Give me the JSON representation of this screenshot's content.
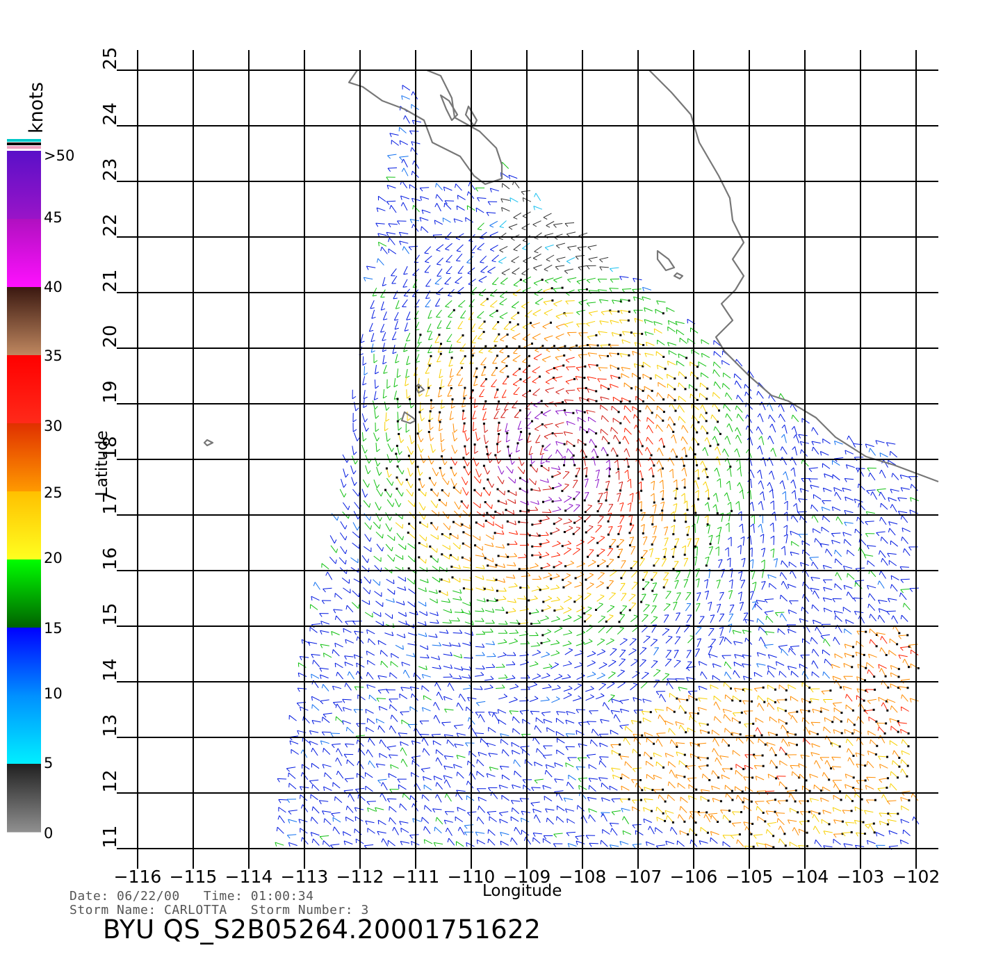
{
  "map": {
    "lon_range": [
      -116,
      -101.6
    ],
    "lat_range": [
      11,
      25
    ],
    "x_axis_title": "Longitude",
    "y_axis_title": "Latitude",
    "lon_ticks": [
      "−116",
      "−115",
      "−114",
      "−113",
      "−112",
      "−111",
      "−110",
      "−109",
      "−108",
      "−107",
      "−106",
      "−105",
      "−104",
      "−103",
      "−102"
    ],
    "lat_ticks": [
      "11",
      "12",
      "13",
      "14",
      "15",
      "16",
      "17",
      "18",
      "19",
      "20",
      "21",
      "22",
      "23",
      "24",
      "25"
    ],
    "grid": true,
    "storm_center": {
      "lon": -108.5,
      "lat": 18.0
    },
    "coastline_color": "#777777"
  },
  "colorbar": {
    "unit_label": "knots",
    "labels": [
      ">50",
      "45",
      "40",
      "35",
      "30",
      "25",
      "20",
      "15",
      "10",
      "5",
      "0"
    ],
    "bands": [
      {
        "range": "45-50",
        "from": "#5a10c8",
        "to": "#9a14c8"
      },
      {
        "range": "40-45",
        "from": "#b010c0",
        "to": "#ff10ff"
      },
      {
        "range": "35-40",
        "from": "#3a1810",
        "to": "#c08860"
      },
      {
        "range": "30-35",
        "from": "#ff0000",
        "to": "#ff2a1a"
      },
      {
        "range": "25-30",
        "from": "#e03000",
        "to": "#ff9a00"
      },
      {
        "range": "20-25",
        "from": "#ffc000",
        "to": "#ffff20"
      },
      {
        "range": "15-20",
        "from": "#00ff00",
        "to": "#006000"
      },
      {
        "range": "10-15",
        "from": "#0000ff",
        "to": "#0090ff"
      },
      {
        "range": "5-10",
        "from": "#0090ff",
        "to": "#00f0ff"
      },
      {
        "range": "0-5",
        "from": "#202020",
        "to": "#909090"
      }
    ],
    "top_stripes": [
      "#00c8c8",
      "#000000",
      "#f0a0c0"
    ]
  },
  "meta": {
    "line1": "Date: 06/22/00   Time: 01:00:34",
    "line2": "Storm Name: CARLOTTA   Storm Number: 3",
    "product_id": "BYU QS_S2B05264.20001751622"
  }
}
